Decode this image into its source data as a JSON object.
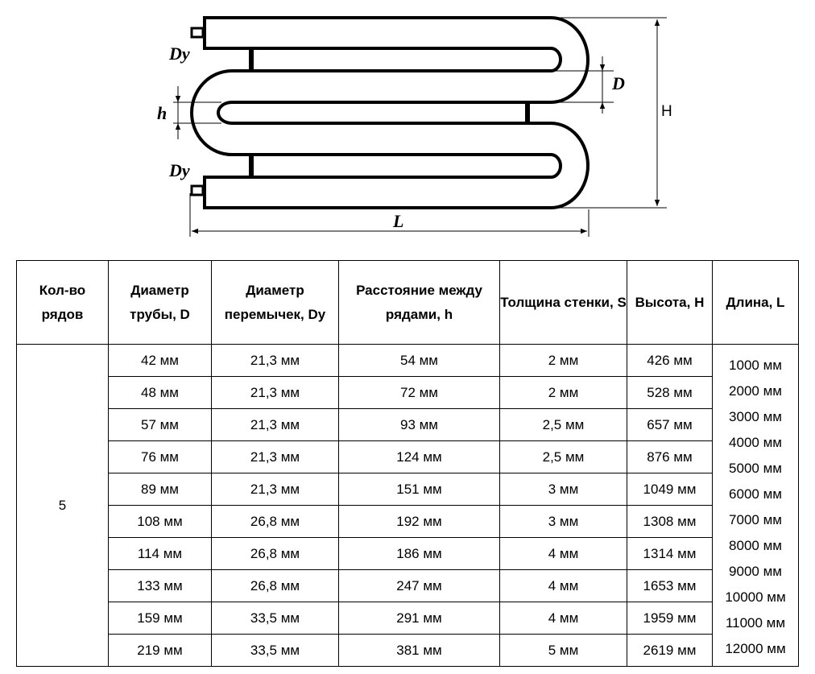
{
  "diagram": {
    "labels": {
      "dy_top": "Dy",
      "dy_bottom": "Dy",
      "h": "h",
      "d": "D",
      "height": "H",
      "length": "L"
    }
  },
  "table": {
    "headers": [
      "Кол-во рядов",
      "Диаметр трубы, D",
      "Диаметр перемычек, Dy",
      "Расстояние между рядами, h",
      "Толщина стенки, S",
      "Высота, H",
      "Длина, L"
    ],
    "rows_count": "5",
    "rows": [
      [
        "42 мм",
        "21,3 мм",
        "54 мм",
        "2 мм",
        "426 мм"
      ],
      [
        "48 мм",
        "21,3 мм",
        "72 мм",
        "2 мм",
        "528 мм"
      ],
      [
        "57 мм",
        "21,3 мм",
        "93 мм",
        "2,5 мм",
        "657 мм"
      ],
      [
        "76 мм",
        "21,3 мм",
        "124 мм",
        "2,5 мм",
        "876 мм"
      ],
      [
        "89 мм",
        "21,3 мм",
        "151 мм",
        "3 мм",
        "1049 мм"
      ],
      [
        "108 мм",
        "26,8 мм",
        "192 мм",
        "3 мм",
        "1308 мм"
      ],
      [
        "114 мм",
        "26,8 мм",
        "186 мм",
        "4 мм",
        "1314 мм"
      ],
      [
        "133 мм",
        "26,8 мм",
        "247 мм",
        "4 мм",
        "1653 мм"
      ],
      [
        "159 мм",
        "33,5 мм",
        "291 мм",
        "4 мм",
        "1959 мм"
      ],
      [
        "219 мм",
        "33,5 мм",
        "381 мм",
        "5 мм",
        "2619 мм"
      ]
    ],
    "lengths": [
      "1000 мм",
      "2000 мм",
      "3000 мм",
      "4000 мм",
      "5000 мм",
      "6000 мм",
      "7000 мм",
      "8000 мм",
      "9000 мм",
      "10000 мм",
      "11000 мм",
      "12000 мм"
    ]
  }
}
